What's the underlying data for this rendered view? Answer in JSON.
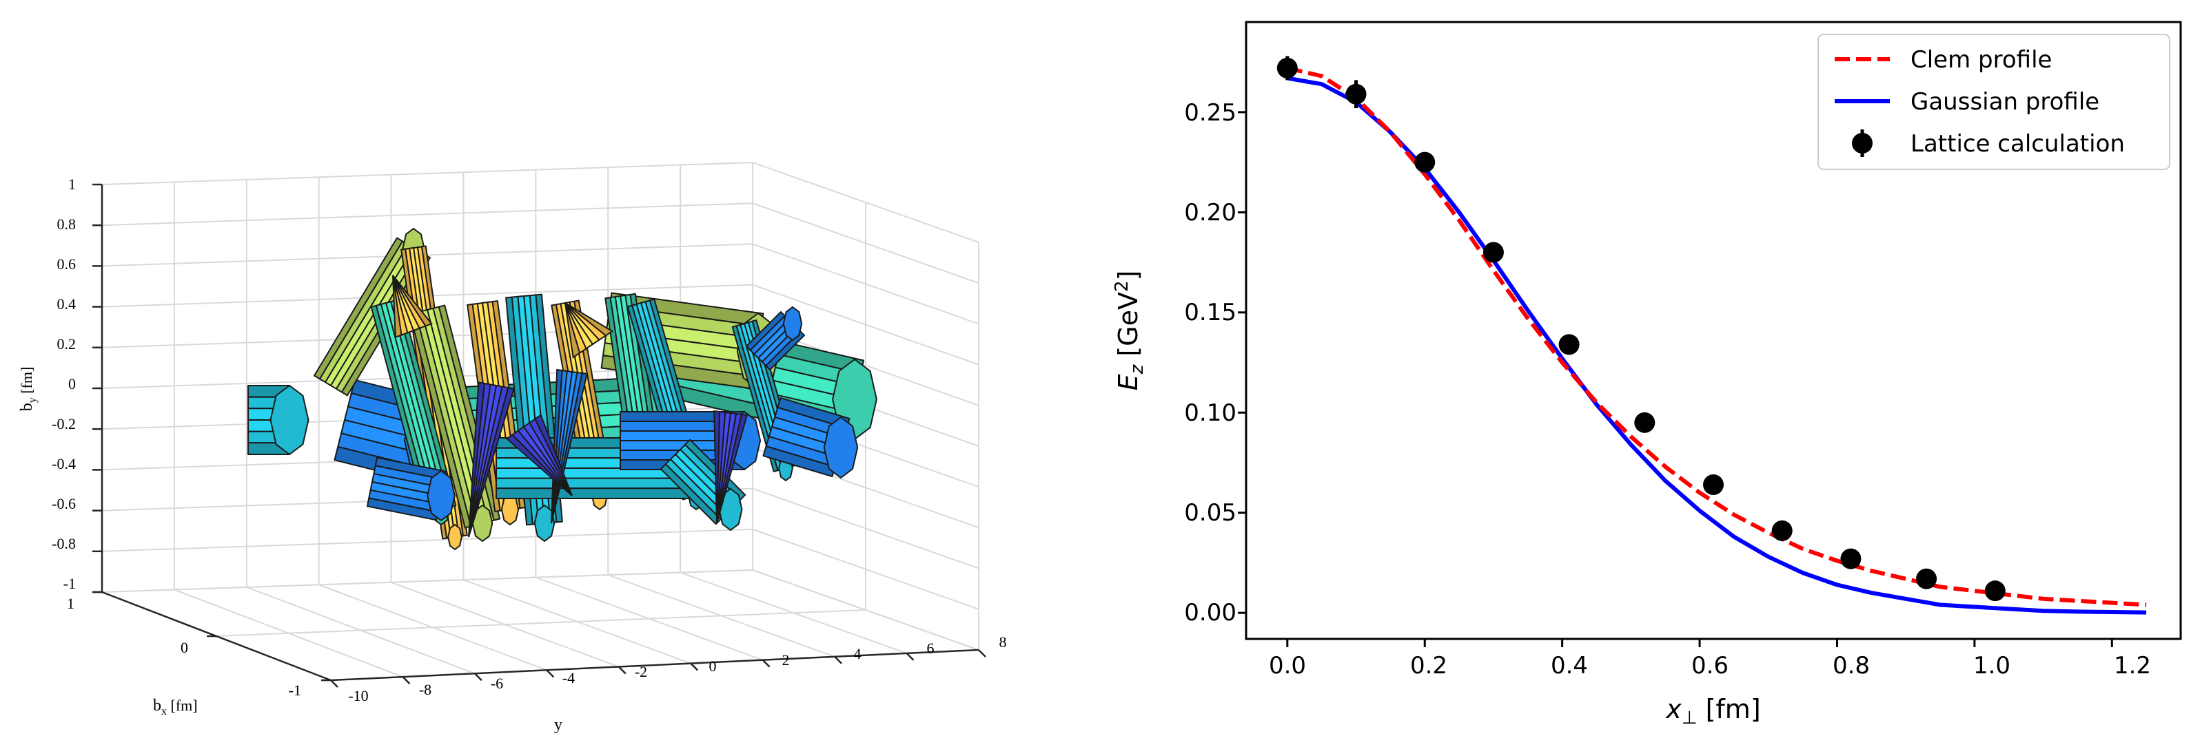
{
  "chart_data": [
    {
      "type": "surface3d",
      "xlabel_main": "b",
      "xlabel_sub": "x",
      "xlabel_unit": " [fm]",
      "ylabel": "y",
      "zlabel_main": "b",
      "zlabel_sub": "y",
      "zlabel_unit": " [fm]",
      "z_ticks": [
        "1",
        "0.8",
        "0.6",
        "0.4",
        "0.2",
        "0",
        "-0.2",
        "-0.4",
        "-0.6",
        "-0.8",
        "-1"
      ],
      "y_ticks": [
        "-10",
        "-8",
        "-6",
        "-4",
        "-2",
        "0",
        "2",
        "4",
        "6",
        "8"
      ],
      "x_ticks": [
        "1",
        "0",
        "-1"
      ],
      "x_range": [
        -1,
        1
      ],
      "y_range": [
        -10,
        8
      ],
      "z_range": [
        -1,
        1
      ],
      "grid": true,
      "colormap": [
        "#3b3fc9",
        "#1f7ae0",
        "#1fb1c8",
        "#38c3a4",
        "#a8c75a",
        "#f2bd4a"
      ]
    },
    {
      "type": "line",
      "xlabel_main": "x",
      "xlabel_sub": "⊥",
      "xlabel_unit": " [fm]",
      "ylabel_main": "E",
      "ylabel_sub": "z",
      "ylabel_unit_prefix": " [GeV",
      "ylabel_unit_sup": "2",
      "ylabel_unit_suffix": "]",
      "xlim": [
        -0.06,
        1.3
      ],
      "ylim": [
        -0.013,
        0.295
      ],
      "x_ticks": [
        "0.0",
        "0.2",
        "0.4",
        "0.6",
        "0.8",
        "1.0",
        "1.2"
      ],
      "y_ticks": [
        "0.00",
        "0.05",
        "0.10",
        "0.15",
        "0.20",
        "0.25"
      ],
      "legend_position": "top-right",
      "series": [
        {
          "name": "Clem profile",
          "color": "#ff0000",
          "style": "dashed",
          "x": [
            0.0,
            0.05,
            0.1,
            0.15,
            0.2,
            0.25,
            0.3,
            0.35,
            0.4,
            0.45,
            0.5,
            0.55,
            0.6,
            0.65,
            0.7,
            0.75,
            0.8,
            0.85,
            0.9,
            0.95,
            1.0,
            1.05,
            1.1,
            1.15,
            1.2,
            1.25
          ],
          "y": [
            0.272,
            0.268,
            0.257,
            0.24,
            0.219,
            0.196,
            0.171,
            0.147,
            0.125,
            0.105,
            0.088,
            0.073,
            0.06,
            0.049,
            0.04,
            0.032,
            0.026,
            0.021,
            0.017,
            0.013,
            0.011,
            0.009,
            0.007,
            0.006,
            0.005,
            0.004
          ]
        },
        {
          "name": "Gaussian profile",
          "color": "#0000ff",
          "style": "solid",
          "x": [
            0.0,
            0.05,
            0.1,
            0.15,
            0.2,
            0.25,
            0.3,
            0.35,
            0.4,
            0.45,
            0.5,
            0.55,
            0.6,
            0.65,
            0.7,
            0.75,
            0.8,
            0.85,
            0.9,
            0.95,
            1.0,
            1.05,
            1.1,
            1.15,
            1.2,
            1.25
          ],
          "y": [
            0.267,
            0.264,
            0.255,
            0.24,
            0.222,
            0.2,
            0.176,
            0.151,
            0.127,
            0.104,
            0.084,
            0.066,
            0.051,
            0.038,
            0.028,
            0.02,
            0.014,
            0.01,
            0.007,
            0.004,
            0.003,
            0.002,
            0.001,
            0.0006,
            0.0004,
            0.0002
          ]
        },
        {
          "name": "Lattice calculation",
          "color": "#000000",
          "style": "markers",
          "x": [
            0.0,
            0.1,
            0.2,
            0.3,
            0.41,
            0.52,
            0.62,
            0.72,
            0.82,
            0.93,
            1.03
          ],
          "y": [
            0.272,
            0.259,
            0.225,
            0.18,
            0.134,
            0.095,
            0.064,
            0.041,
            0.027,
            0.017,
            0.011
          ],
          "yerr": [
            0.006,
            0.007,
            0.005,
            0.005,
            0.004,
            0.003,
            0.003,
            0.003,
            0.002,
            0.002,
            0.002
          ]
        }
      ]
    }
  ]
}
